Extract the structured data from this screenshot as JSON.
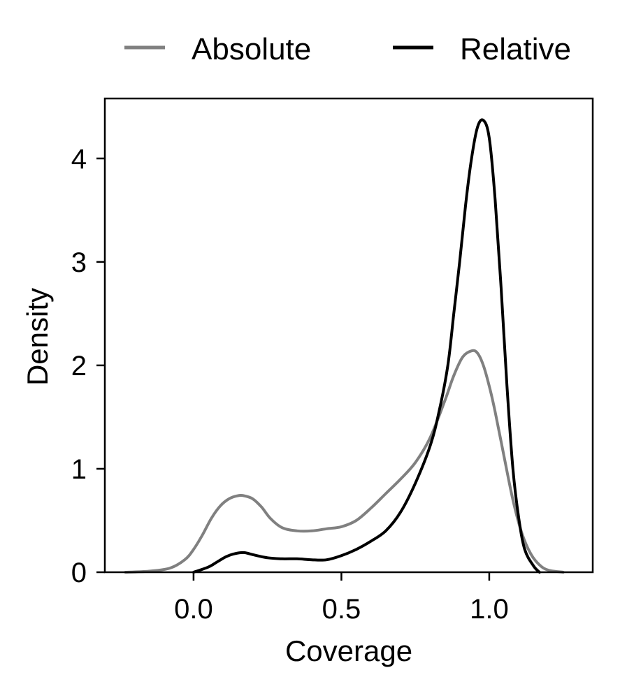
{
  "chart_data": {
    "type": "line",
    "title": "",
    "xlabel": "Coverage",
    "ylabel": "Density",
    "xlim": [
      -0.3,
      1.35
    ],
    "ylim": [
      0,
      4.58
    ],
    "xticks": [
      0.0,
      0.5,
      1.0
    ],
    "xtick_labels": [
      "0.0",
      "0.5",
      "1.0"
    ],
    "yticks": [
      0,
      1,
      2,
      3,
      4
    ],
    "ytick_labels": [
      "0",
      "1",
      "2",
      "3",
      "4"
    ],
    "grid": false,
    "legend_position": "top",
    "series": [
      {
        "name": "Absolute",
        "color": "#808080",
        "x": [
          -0.23,
          -0.15,
          -0.08,
          -0.03,
          0.0,
          0.03,
          0.06,
          0.09,
          0.12,
          0.15,
          0.17,
          0.2,
          0.23,
          0.26,
          0.3,
          0.35,
          0.4,
          0.45,
          0.5,
          0.55,
          0.6,
          0.65,
          0.7,
          0.75,
          0.8,
          0.85,
          0.88,
          0.91,
          0.94,
          0.96,
          0.98,
          1.0,
          1.02,
          1.05,
          1.08,
          1.11,
          1.14,
          1.17,
          1.2,
          1.25
        ],
        "y": [
          0.0,
          0.01,
          0.04,
          0.12,
          0.22,
          0.36,
          0.52,
          0.64,
          0.71,
          0.74,
          0.74,
          0.71,
          0.63,
          0.52,
          0.43,
          0.4,
          0.4,
          0.42,
          0.44,
          0.5,
          0.62,
          0.76,
          0.9,
          1.06,
          1.3,
          1.66,
          1.9,
          2.08,
          2.14,
          2.12,
          2.0,
          1.8,
          1.55,
          1.12,
          0.7,
          0.38,
          0.18,
          0.07,
          0.02,
          0.0
        ]
      },
      {
        "name": "Relative",
        "color": "#000000",
        "x": [
          0.0,
          0.05,
          0.08,
          0.11,
          0.14,
          0.17,
          0.2,
          0.25,
          0.3,
          0.35,
          0.4,
          0.45,
          0.5,
          0.55,
          0.6,
          0.65,
          0.7,
          0.75,
          0.8,
          0.83,
          0.86,
          0.88,
          0.9,
          0.92,
          0.94,
          0.96,
          0.98,
          1.0,
          1.02,
          1.04,
          1.06,
          1.08,
          1.1,
          1.12,
          1.15,
          1.17
        ],
        "y": [
          0.0,
          0.05,
          0.1,
          0.15,
          0.18,
          0.19,
          0.17,
          0.14,
          0.13,
          0.13,
          0.12,
          0.12,
          0.16,
          0.22,
          0.3,
          0.4,
          0.58,
          0.86,
          1.22,
          1.55,
          2.0,
          2.5,
          3.0,
          3.55,
          4.0,
          4.3,
          4.37,
          4.2,
          3.6,
          2.75,
          1.8,
          1.0,
          0.52,
          0.22,
          0.06,
          0.0
        ]
      }
    ]
  }
}
